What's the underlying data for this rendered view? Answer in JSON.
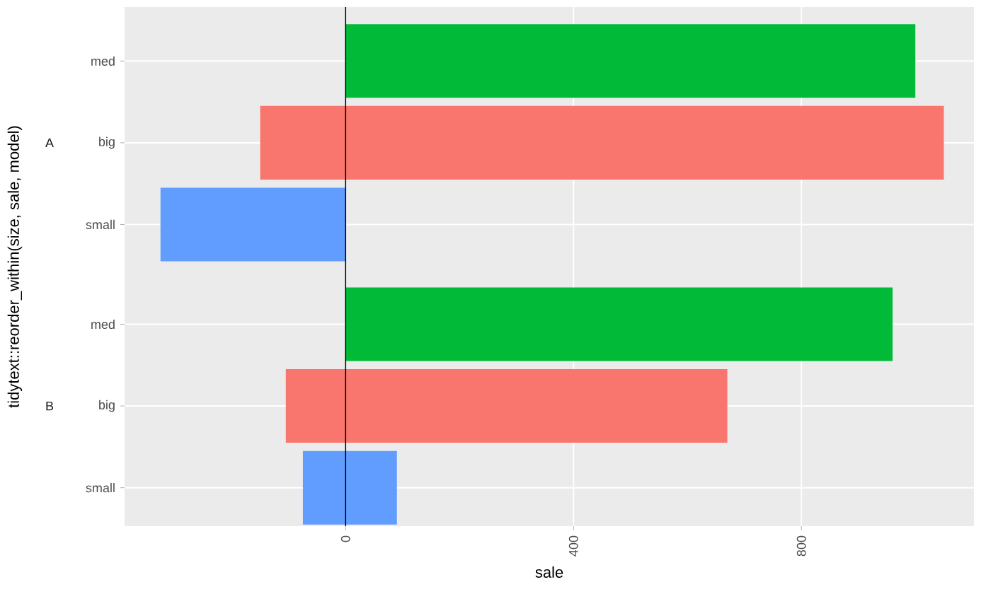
{
  "chart_data": {
    "type": "bar",
    "orientation": "horizontal",
    "stacked": true,
    "xlabel": "sale",
    "ylabel": "tidytext::reorder_within(size, sale, model)",
    "categories": [
      "med",
      "big",
      "small",
      "med",
      "big",
      "small"
    ],
    "series": [
      {
        "colors": [
          "#00ba38",
          "#f8766d",
          "#619cff",
          "#00ba38",
          "#f8766d",
          "#619cff"
        ],
        "values": [
          1000,
          1050,
          null,
          960,
          670,
          90
        ]
      },
      {
        "colors": [
          "#00ba38",
          "#f8766d",
          "#619cff",
          "#00ba38",
          "#f8766d",
          "#619cff"
        ],
        "values": [
          null,
          -150,
          -325,
          null,
          -105,
          -75
        ]
      }
    ],
    "annotations": [
      "A",
      "B"
    ],
    "xlim": [
      -388,
      1103
    ],
    "xticks": [
      0,
      400,
      800
    ],
    "ref_lines": [
      {
        "axis": "x",
        "value": 0,
        "color": "#000000"
      }
    ],
    "grid": true
  }
}
